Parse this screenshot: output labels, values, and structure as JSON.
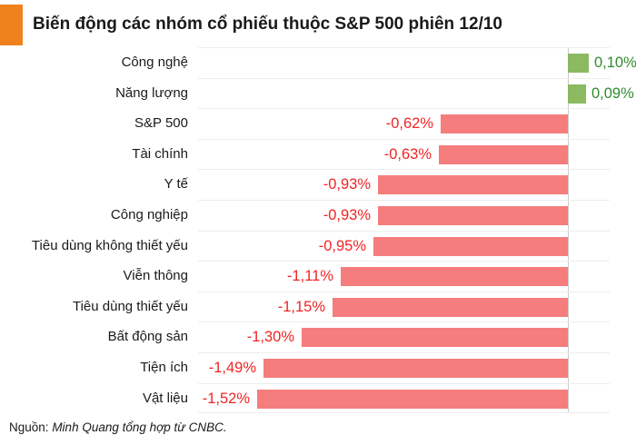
{
  "header": {
    "title": "Biến động các nhóm cổ phiếu thuộc S&P 500 phiên 12/10",
    "accent_color": "#F0821E"
  },
  "footer": {
    "source_prefix": "Nguồn:",
    "source_text": "Minh Quang tổng hợp từ CNBC."
  },
  "colors": {
    "title_text": "#1A1A1A",
    "category_text": "#1A1A1A",
    "positive_bar": "#8BBA61",
    "positive_text": "#2F8A2F",
    "negative_bar": "#F57D7D",
    "negative_text": "#F02323",
    "row_separator": "#EDEDED",
    "zero_axis_line": "#C9C9C9",
    "background": "#FFFFFF"
  },
  "chart_data": {
    "type": "bar",
    "orientation": "horizontal",
    "title": "Biến động các nhóm cổ phiếu thuộc S&P 500 phiên 12/10",
    "xlabel": "",
    "ylabel": "",
    "unit": "%",
    "xlim": [
      -1.81,
      0.2
    ],
    "grid": "row-separators",
    "legend": "none",
    "zero_axis": true,
    "categories": [
      "Công nghệ",
      "Năng lượng",
      "S&P 500",
      "Tài chính",
      "Y tế",
      "Công nghiệp",
      "Tiêu dùng không thiết yếu",
      "Viễn thông",
      "Tiêu dùng thiết yếu",
      "Bất động sản",
      "Tiện ích",
      "Vật liệu"
    ],
    "values": [
      0.1,
      0.09,
      -0.62,
      -0.63,
      -0.93,
      -0.93,
      -0.95,
      -1.11,
      -1.15,
      -1.3,
      -1.49,
      -1.52
    ],
    "value_labels": [
      "0,10%",
      "0,09%",
      "-0,62%",
      "-0,63%",
      "-0,93%",
      "-0,93%",
      "-0,95%",
      "-1,11%",
      "-1,15%",
      "-1,30%",
      "-1,49%",
      "-1,52%"
    ]
  }
}
